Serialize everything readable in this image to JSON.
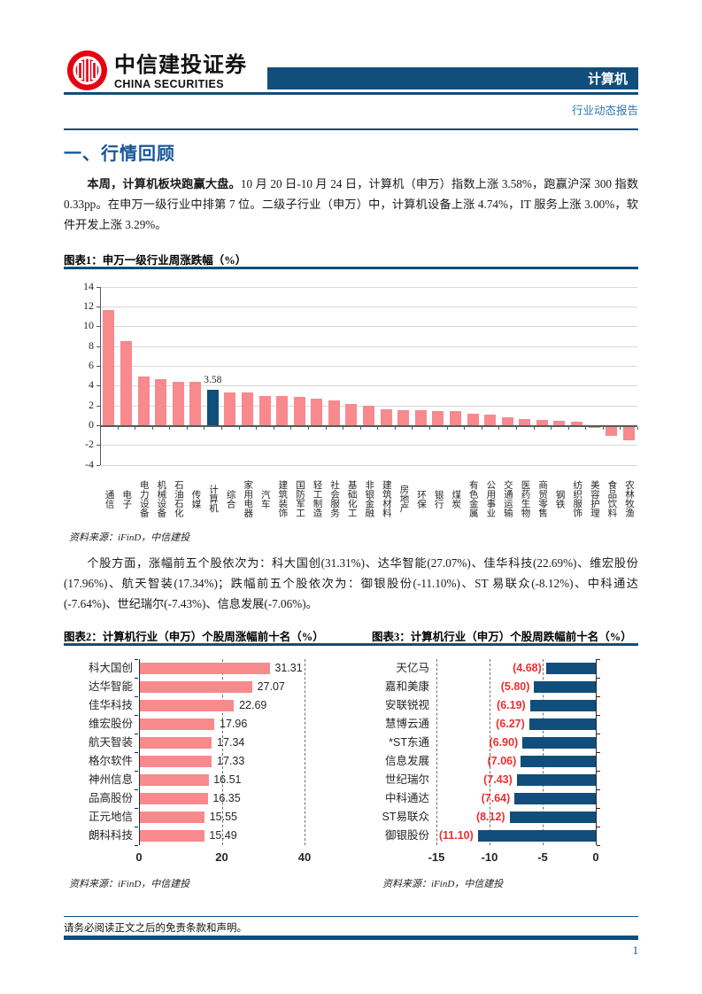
{
  "header": {
    "brand_cn": "中信建投证券",
    "brand_en": "CHINA SECURITIES",
    "industry_tag": "计算机",
    "report_type": "行业动态报告"
  },
  "body": {
    "section_title": "一、行情回顾",
    "para1_lead": "本周，计算机板块跑赢大盘。",
    "para1_rest": "10 月 20 日-10 月 24 日，计算机（申万）指数上涨 3.58%，跑赢沪深 300 指数 0.33pp。在申万一级行业中排第 7 位。二级子行业（申万）中，计算机设备上涨 4.74%，IT 服务上涨 3.00%，软件开发上涨 3.29%。",
    "para2": "个股方面，涨幅前五个股依次为：科大国创(31.31%)、达华智能(27.07%)、佳华科技(22.69%)、维宏股份(17.96%)、航天智装(17.34%)；跌幅前五个股依次为：御银股份(-11.10%)、ST 易联众(-8.12%)、中科通达(-7.64%)、世纪瑞尔(-7.43%)、信息发展(-7.06%)。"
  },
  "figures": {
    "fig1_title": "图表1：申万一级行业周涨跌幅（%）",
    "fig1_source": "资料来源：iFinD，中信建投",
    "fig2_title": "图表2：计算机行业（申万）个股周涨幅前十名（%）",
    "fig2_source": "资料来源：iFinD，中信建投",
    "fig3_title": "图表3：计算机行业（申万）个股周跌幅前十名（%）",
    "fig3_source": "资料来源：iFinD，中信建投"
  },
  "footer": {
    "disclaimer": "请务必阅读正文之后的免责条款和声明。",
    "page_number": "1"
  },
  "colors": {
    "navy": "#114E7B",
    "pink": "#F8898D",
    "highlight_blue": "#114E7B",
    "value_red": "#ED2F2F",
    "link_blue": "#2E74B5",
    "title_blue": "#15569B",
    "logo_red": "#E60012",
    "grid_gray": "#D9D9D9",
    "axis_gray": "#595959"
  },
  "chart_data": [
    {
      "id": "fig1",
      "type": "bar",
      "title": "申万一级行业周涨跌幅（%）",
      "categories": [
        "通信",
        "电子",
        "电力设备",
        "机械设备",
        "石油石化",
        "传媒",
        "计算机",
        "综合",
        "家用电器",
        "汽车",
        "建筑装饰",
        "国防军工",
        "轻工制造",
        "社会服务",
        "基础化工",
        "非银金融",
        "建筑材料",
        "房地产",
        "环保",
        "银行",
        "煤炭",
        "有色金属",
        "公用事业",
        "交通运输",
        "医药生物",
        "商贸零售",
        "钢铁",
        "纺织服饰",
        "美容护理",
        "食品饮料",
        "农林牧渔"
      ],
      "values": [
        11.6,
        8.5,
        4.9,
        4.7,
        4.4,
        4.4,
        3.58,
        3.3,
        3.3,
        2.95,
        2.95,
        2.85,
        2.65,
        2.55,
        2.15,
        2.0,
        1.6,
        1.55,
        1.5,
        1.45,
        1.4,
        1.15,
        1.05,
        0.8,
        0.6,
        0.5,
        0.45,
        0.4,
        -0.05,
        -0.9,
        -1.35
      ],
      "highlight_category": "计算机",
      "highlight_value_label": "3.58",
      "ylim": [
        -4,
        14
      ],
      "yticks": [
        14,
        12,
        10,
        8,
        6,
        4,
        2,
        0,
        -2,
        -4
      ],
      "grid": true,
      "legend": "none"
    },
    {
      "id": "fig2",
      "type": "bar-horizontal",
      "title": "计算机行业（申万）个股周涨幅前十名（%）",
      "categories": [
        "科大国创",
        "达华智能",
        "佳华科技",
        "维宏股份",
        "航天智装",
        "格尔软件",
        "神州信息",
        "品高股份",
        "正元地信",
        "朗科科技"
      ],
      "values": [
        31.31,
        27.07,
        22.69,
        17.96,
        17.34,
        17.33,
        16.51,
        16.35,
        15.55,
        15.49
      ],
      "value_labels": [
        "31.31",
        "27.07",
        "22.69",
        "17.96",
        "17.34",
        "17.33",
        "16.51",
        "16.35",
        "15.55",
        "15.49"
      ],
      "xlim": [
        0,
        40
      ],
      "xticks": [
        0,
        20,
        40
      ],
      "xtick_labels": [
        "0",
        "20",
        "40"
      ]
    },
    {
      "id": "fig3",
      "type": "bar-horizontal",
      "title": "计算机行业（申万）个股周跌幅前十名（%）",
      "categories": [
        "天亿马",
        "嘉和美康",
        "安联锐视",
        "慧博云通",
        "*ST东通",
        "信息发展",
        "世纪瑞尔",
        "中科通达",
        "ST易联众",
        "御银股份"
      ],
      "values": [
        -4.68,
        -5.8,
        -6.19,
        -6.27,
        -6.9,
        -7.06,
        -7.43,
        -7.64,
        -8.12,
        -11.1
      ],
      "value_labels": [
        "(4.68)",
        "(5.80)",
        "(6.19)",
        "(6.27)",
        "(6.90)",
        "(7.06)",
        "(7.43)",
        "(7.64)",
        "(8.12)",
        "(11.10)"
      ],
      "xlim": [
        -15,
        0
      ],
      "xticks": [
        -15,
        -10,
        -5,
        0
      ],
      "xtick_labels": [
        "-15",
        "-10",
        "-5",
        "0"
      ]
    }
  ]
}
